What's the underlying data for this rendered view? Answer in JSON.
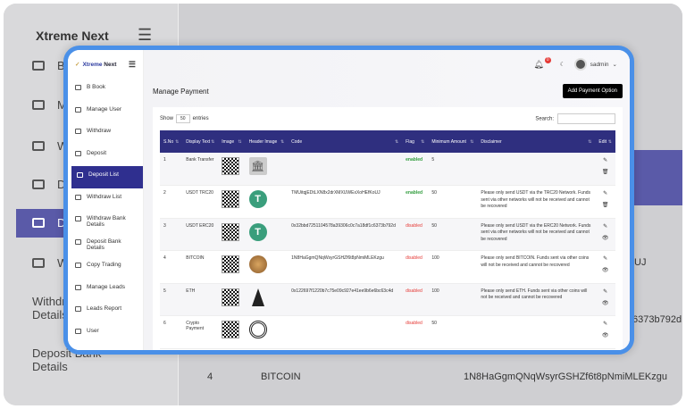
{
  "background": {
    "logo": "Xtreme Next",
    "sidebar": [
      "B",
      "M",
      "W",
      "D",
      "D",
      "W",
      "Withdraw Bank Details",
      "Deposit Bank Details"
    ],
    "row": {
      "sno": "4",
      "text": "BITCOIN",
      "code": "1N8HaGgmQNqWsyrGSHZf6t8pNmiMLEKzgu"
    },
    "fragments": [
      "UJ",
      "6373b792d"
    ]
  },
  "brand": {
    "name_a": "Xtreme",
    "name_b": " Next"
  },
  "sidebar": {
    "items": [
      {
        "label": "B Book",
        "icon": "book-icon"
      },
      {
        "label": "Manage User",
        "icon": "users-icon"
      },
      {
        "label": "Withdraw",
        "icon": "archive-icon"
      },
      {
        "label": "Deposit",
        "icon": "archive-icon"
      },
      {
        "label": "Deposit List",
        "icon": "archive-icon",
        "active": true
      },
      {
        "label": "Withdraw List",
        "icon": "archive-icon"
      },
      {
        "label": "Withdraw Bank Details",
        "icon": "archive-icon"
      },
      {
        "label": "Deposit Bank Details",
        "icon": "archive-icon"
      },
      {
        "label": "Copy Trading",
        "icon": "copy-icon"
      },
      {
        "label": "Manage Leads",
        "icon": "leads-icon"
      },
      {
        "label": "Leads Report",
        "icon": "report-icon"
      },
      {
        "label": "User",
        "icon": "user-icon"
      }
    ]
  },
  "header": {
    "notifications": "0",
    "user": "sadmin"
  },
  "page": {
    "title": "Manage Payment",
    "add_button": "Add Payment Option"
  },
  "table_controls": {
    "show": "Show",
    "entries_value": "50",
    "entries": "entries",
    "search_label": "Search:"
  },
  "table": {
    "columns": [
      "S.No",
      "Display Text",
      "Image",
      "Header Image",
      "Code",
      "Flag",
      "Minimum Amount",
      "Disclaimer",
      "Edit"
    ],
    "rows": [
      {
        "sno": "1",
        "text": "Bank Transfer",
        "header_icon": "bank-icon",
        "code": "",
        "flag": "enabled",
        "min": "5",
        "disclaimer": "",
        "action2": "delete"
      },
      {
        "sno": "2",
        "text": "USDT TRC20",
        "header_icon": "tether-icon",
        "code": "TMUitqjEDtLXN8x2drXMXUWExXoHEfKoUJ",
        "flag": "enabled",
        "min": "50",
        "disclaimer": "Please only send USDT via the TRC20 Network. Funds sent via other networks will not be received and cannot be recovered",
        "action2": "delete"
      },
      {
        "sno": "3",
        "text": "USDT ERC20",
        "header_icon": "tether-icon",
        "code": "0x32bbd7251104578a39306c0c7a18df1c6373b792d",
        "flag": "disabled",
        "min": "50",
        "disclaimer": "Please only send USDT via the ERC20 Network. Funds sent via other networks will not be received and cannot be recovered",
        "action2": "view"
      },
      {
        "sno": "4",
        "text": "BITCOIN",
        "header_icon": "bitcoin-icon",
        "code": "1N8HaGgmQNqWsyrGSHZf6t8pNmiMLEKzgu",
        "flag": "disabled",
        "min": "100",
        "disclaimer": "Please only send BITCOIN. Funds sent via other coins will not be received and cannot be recovered",
        "action2": "view"
      },
      {
        "sno": "5",
        "text": "ETH",
        "header_icon": "ethereum-icon",
        "code": "0x122697f1220b7c75e09c927e41ee9b6e6bc63c4d",
        "flag": "disabled",
        "min": "100",
        "disclaimer": "Please only send ETH. Funds sent via other coins will not be received and cannot be recovered",
        "action2": "view"
      },
      {
        "sno": "6",
        "text": "Crypto Payment",
        "header_icon": "crypto-icon",
        "code": "",
        "flag": "disabled",
        "min": "50",
        "disclaimer": "",
        "action2": "view"
      }
    ]
  },
  "colors": {
    "accent": "#2f2f7f",
    "frame": "#4a90e8",
    "enabled": "#2e9b3a",
    "disabled": "#e53935"
  }
}
